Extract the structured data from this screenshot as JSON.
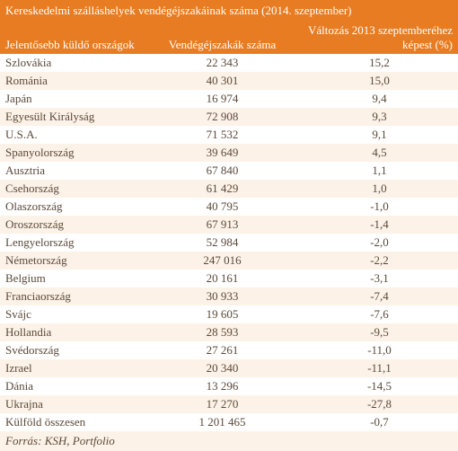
{
  "table": {
    "title": "Kereskedelmi szálláshelyek vendégéjszakáinak száma (2014. szeptember)",
    "columns": {
      "c1": "Jelentősebb küldő országok",
      "c2": "Vendégéjszakák száma",
      "c3": "Változás 2013 szeptemberéhez képest (%)"
    },
    "rows": [
      {
        "country": "Szlovákia",
        "nights": "22 343",
        "change": "15,2"
      },
      {
        "country": "Románia",
        "nights": "40 301",
        "change": "15,0"
      },
      {
        "country": "Japán",
        "nights": "16 974",
        "change": "9,4"
      },
      {
        "country": "Egyesült Királyság",
        "nights": "72 908",
        "change": "9,3"
      },
      {
        "country": "U.S.A.",
        "nights": "71 532",
        "change": "9,1"
      },
      {
        "country": "Spanyolország",
        "nights": "39 649",
        "change": "4,5"
      },
      {
        "country": "Ausztria",
        "nights": "67 840",
        "change": "1,1"
      },
      {
        "country": "Csehország",
        "nights": "61 429",
        "change": "1,0"
      },
      {
        "country": "Olaszország",
        "nights": "40 795",
        "change": "-1,0"
      },
      {
        "country": "Oroszország",
        "nights": "67 913",
        "change": "-1,4"
      },
      {
        "country": "Lengyelország",
        "nights": "52 984",
        "change": "-2,0"
      },
      {
        "country": "Németország",
        "nights": "247 016",
        "change": "-2,2"
      },
      {
        "country": "Belgium",
        "nights": "20 161",
        "change": "-3,1"
      },
      {
        "country": "Franciaország",
        "nights": "30 933",
        "change": "-7,4"
      },
      {
        "country": "Svájc",
        "nights": "19 605",
        "change": "-7,6"
      },
      {
        "country": "Hollandia",
        "nights": "28 593",
        "change": "-9,5"
      },
      {
        "country": "Svédország",
        "nights": "27 261",
        "change": "-11,0"
      },
      {
        "country": "Izrael",
        "nights": "20 340",
        "change": "-11,1"
      },
      {
        "country": "Dánia",
        "nights": "13 296",
        "change": "-14,5"
      },
      {
        "country": "Ukrajna",
        "nights": "17 270",
        "change": "-27,8"
      },
      {
        "country": "Külföld összesen",
        "nights": "1 201 465",
        "change": "-0,7"
      }
    ],
    "source": "Forrás: KSH, Portfolio",
    "colors": {
      "header_bg": "#e77c22",
      "header_text": "#ffffff",
      "row_odd_bg": "#ffffff",
      "row_even_bg": "#fdf2e7",
      "text": "#5a4a3a",
      "footer_bg": "#fdf2e7"
    },
    "fontsize": 13
  }
}
